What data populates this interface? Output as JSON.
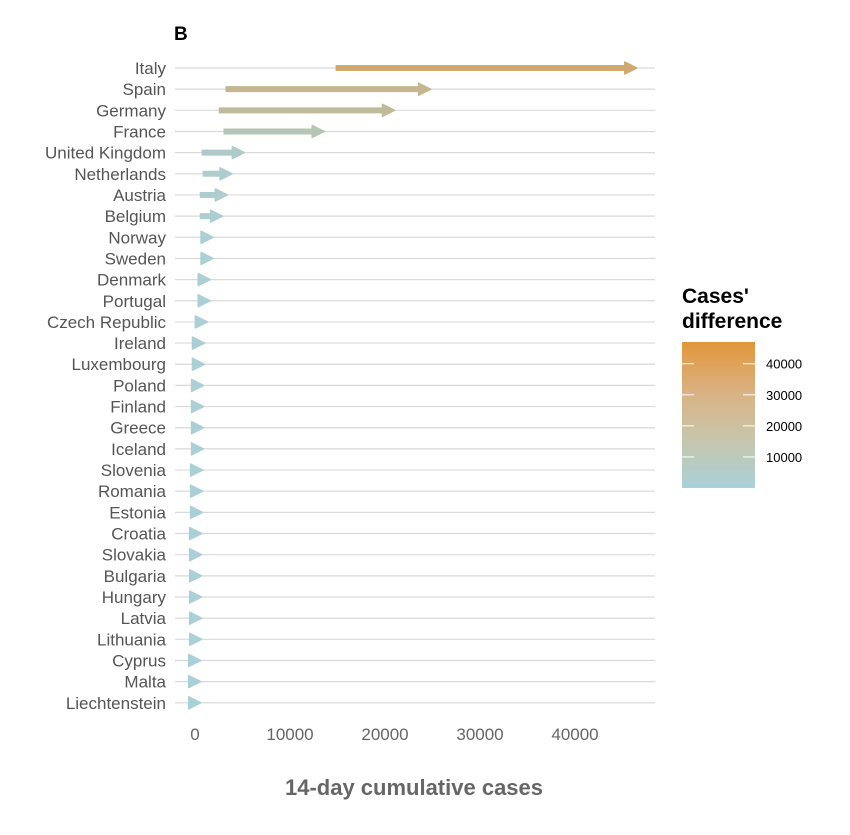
{
  "chart_data": {
    "type": "arrow",
    "panel_label": "B",
    "xlabel": "14-day cumulative cases",
    "ylabel": "",
    "xlim": [
      -2500,
      48500
    ],
    "xticks": [
      0,
      10000,
      20000,
      30000,
      40000
    ],
    "grid": "horizontal",
    "legend": {
      "title_lines": [
        "Cases'",
        "difference"
      ],
      "placement": "right",
      "ticks": [
        10000,
        20000,
        30000,
        40000
      ],
      "range": [
        0,
        47000
      ],
      "colors": [
        "#a9d1d9",
        "#e2963a"
      ]
    },
    "categories": [
      "Italy",
      "Spain",
      "Germany",
      "France",
      "United Kingdom",
      "Netherlands",
      "Austria",
      "Belgium",
      "Norway",
      "Sweden",
      "Denmark",
      "Portugal",
      "Czech Republic",
      "Ireland",
      "Luxembourg",
      "Poland",
      "Finland",
      "Greece",
      "Iceland",
      "Slovenia",
      "Romania",
      "Estonia",
      "Croatia",
      "Slovakia",
      "Bulgaria",
      "Hungary",
      "Latvia",
      "Lithuania",
      "Cyprus",
      "Malta",
      "Liechtenstein"
    ],
    "series": [
      {
        "values_start": [
          14800,
          3200,
          2500,
          3000,
          700,
          800,
          500,
          500,
          700,
          700,
          400,
          400,
          200,
          100,
          200,
          100,
          100,
          100,
          100,
          50,
          50,
          50,
          50,
          50,
          50,
          50,
          50,
          50,
          0,
          0,
          0
        ],
        "values_end": [
          46500,
          24800,
          21000,
          13600,
          5200,
          3900,
          3400,
          2900,
          1900,
          1900,
          1600,
          1600,
          1300,
          1000,
          1000,
          900,
          900,
          900,
          900,
          800,
          800,
          800,
          700,
          700,
          700,
          700,
          700,
          700,
          600,
          600,
          600
        ]
      }
    ]
  }
}
